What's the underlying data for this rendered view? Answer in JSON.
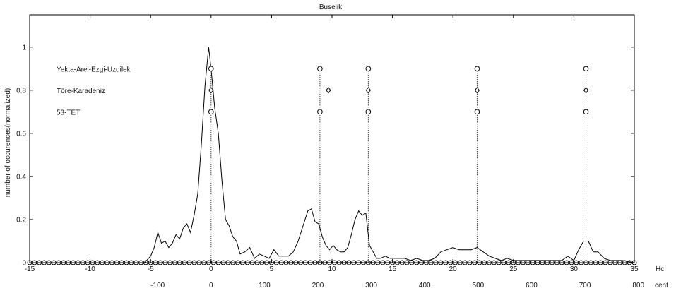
{
  "chart_data": {
    "type": "line",
    "title": "Buselik",
    "ylabel": "number of occurences(normalized)",
    "xlabel_hc": "Hc",
    "xlabel_cent": "cent",
    "xlim": [
      -15,
      35
    ],
    "ylim": [
      0,
      1.15
    ],
    "hc_ticks": [
      -15,
      -10,
      -5,
      0,
      5,
      10,
      15,
      20,
      25,
      30,
      35
    ],
    "cent_ticks": [
      -100,
      0,
      100,
      200,
      300,
      400,
      500,
      600,
      700,
      800
    ],
    "y_ticks": [
      0,
      0.2,
      0.4,
      0.6,
      0.8,
      1
    ],
    "histogram": {
      "x": [
        -15,
        -14,
        -13,
        -12,
        -11,
        -10,
        -9,
        -8,
        -7,
        -6,
        -5.5,
        -5,
        -4.7,
        -4.4,
        -4.1,
        -3.8,
        -3.5,
        -3.2,
        -2.9,
        -2.6,
        -2.3,
        -2.0,
        -1.7,
        -1.4,
        -1.1,
        -0.8,
        -0.5,
        -0.2,
        0,
        0.3,
        0.6,
        0.9,
        1.2,
        1.5,
        1.8,
        2.1,
        2.4,
        2.8,
        3.2,
        3.6,
        4.0,
        4.4,
        4.8,
        5.2,
        5.6,
        6.0,
        6.4,
        6.8,
        7.2,
        7.6,
        8.0,
        8.3,
        8.6,
        8.9,
        9.2,
        9.5,
        9.8,
        10.1,
        10.4,
        10.7,
        11.0,
        11.3,
        11.6,
        11.9,
        12.2,
        12.5,
        12.8,
        13.1,
        13.4,
        13.7,
        14.0,
        14.4,
        14.8,
        15.2,
        15.6,
        16.0,
        16.5,
        17.0,
        17.5,
        18.0,
        18.5,
        19.0,
        19.5,
        20.0,
        20.5,
        21.0,
        21.5,
        22.0,
        22.5,
        23.0,
        23.5,
        24.0,
        24.5,
        25.0,
        26.0,
        27.0,
        28.0,
        29.0,
        29.5,
        30.0,
        30.4,
        30.8,
        31.2,
        31.6,
        32.0,
        32.5,
        33.0,
        34.0,
        35.0
      ],
      "y": [
        0,
        0,
        0,
        0,
        0,
        0,
        0,
        0,
        0,
        0,
        0,
        0.03,
        0.07,
        0.14,
        0.09,
        0.1,
        0.07,
        0.09,
        0.13,
        0.11,
        0.16,
        0.18,
        0.14,
        0.22,
        0.32,
        0.55,
        0.82,
        1.0,
        0.9,
        0.72,
        0.6,
        0.38,
        0.2,
        0.17,
        0.12,
        0.1,
        0.04,
        0.05,
        0.07,
        0.02,
        0.04,
        0.03,
        0.02,
        0.06,
        0.03,
        0.03,
        0.03,
        0.05,
        0.1,
        0.17,
        0.24,
        0.25,
        0.19,
        0.18,
        0.12,
        0.08,
        0.06,
        0.08,
        0.06,
        0.05,
        0.05,
        0.07,
        0.13,
        0.2,
        0.24,
        0.22,
        0.23,
        0.08,
        0.05,
        0.02,
        0.02,
        0.03,
        0.02,
        0.02,
        0.02,
        0.02,
        0.01,
        0.02,
        0.01,
        0.01,
        0.02,
        0.05,
        0.06,
        0.07,
        0.06,
        0.06,
        0.06,
        0.07,
        0.05,
        0.03,
        0.02,
        0.01,
        0.02,
        0.01,
        0.01,
        0.01,
        0.01,
        0.01,
        0.03,
        0.01,
        0.06,
        0.1,
        0.1,
        0.05,
        0.05,
        0.02,
        0.01,
        0.01,
        0.0
      ]
    },
    "tuning_lines": [
      0,
      9,
      13,
      22,
      31
    ],
    "series": [
      {
        "name": "Yekta-Arel-Ezgi-Uzdilek",
        "marker": "circle",
        "y_level": 0.9,
        "x": [
          0,
          9,
          13,
          22,
          31
        ]
      },
      {
        "name": "Töre-Karadeniz",
        "marker": "diamond",
        "y_level": 0.8,
        "x": [
          0,
          9.7,
          13,
          22,
          31
        ]
      },
      {
        "name": "53-TET",
        "marker": "circle",
        "y_level": 0.7,
        "x": [
          0,
          9,
          13,
          22,
          31
        ]
      }
    ],
    "baseline_markers": {
      "y": 0,
      "x_start": -15,
      "x_end": 35,
      "step": 0.4,
      "marker": "circle"
    },
    "grid": false,
    "legend": "left, inside plot (labels only)"
  }
}
